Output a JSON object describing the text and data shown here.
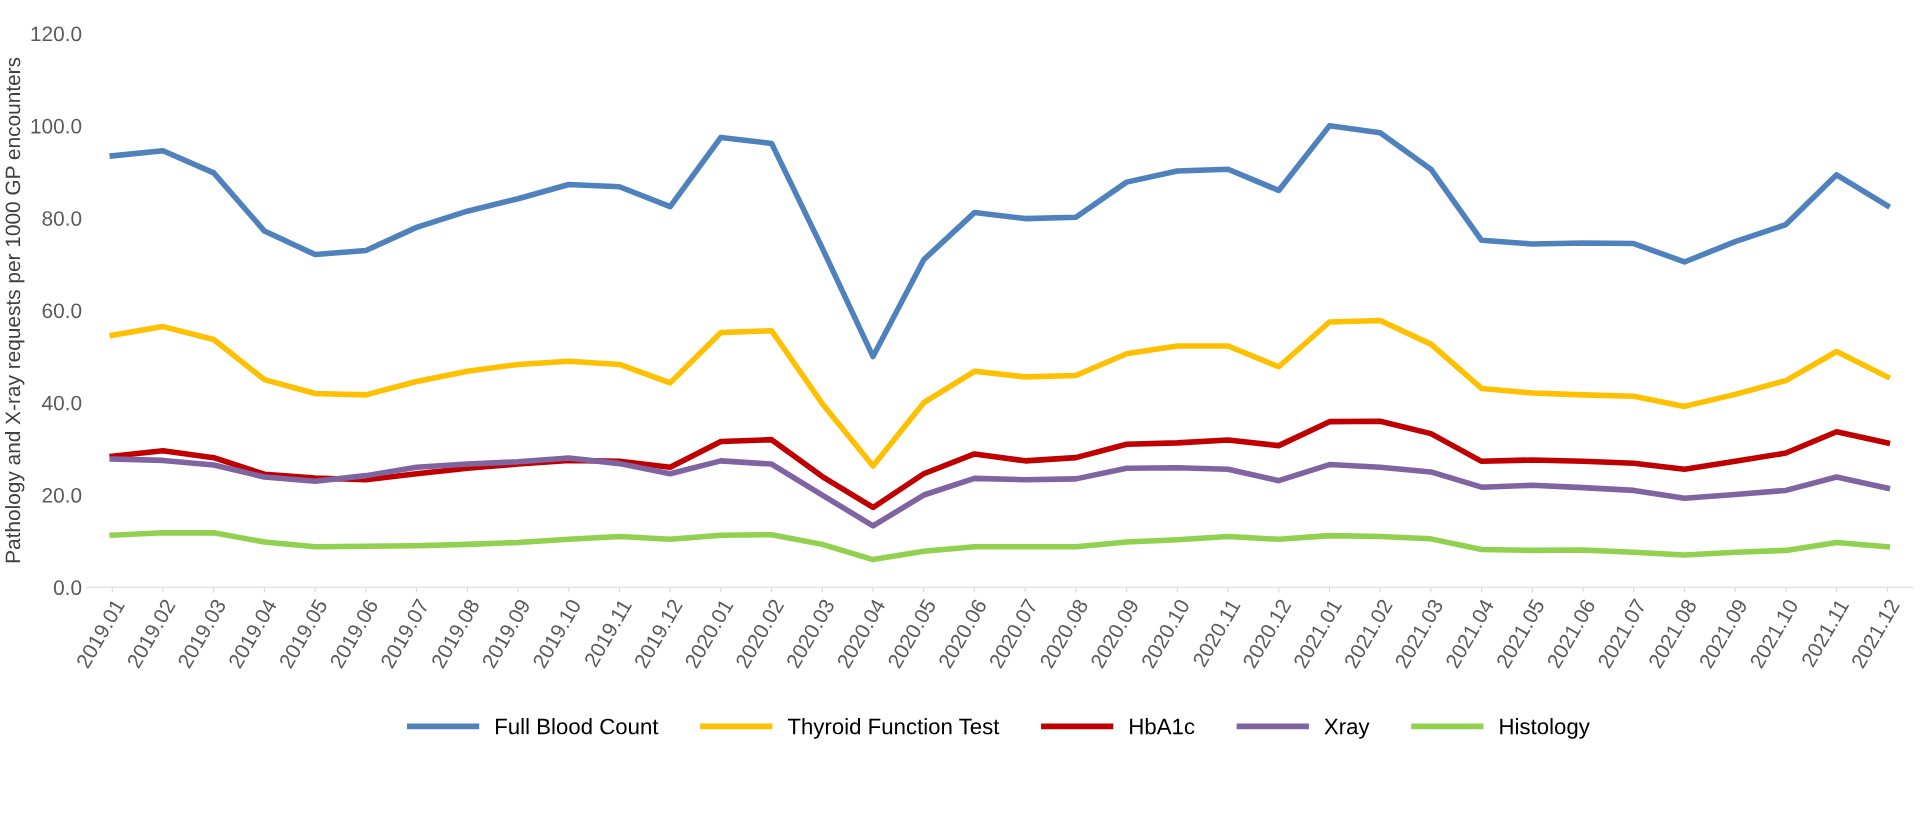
{
  "chart_data": {
    "type": "line",
    "ylabel": "Pathology and X-ray requests per 1000 GP encounters",
    "categories": [
      "2019.01",
      "2019.02",
      "2019.03",
      "2019.04",
      "2019.05",
      "2019.06",
      "2019.07",
      "2019.08",
      "2019.09",
      "2019.10",
      "2019.11",
      "2019.12",
      "2020.01",
      "2020.02",
      "2020.03",
      "2020.04",
      "2020.05",
      "2020.06",
      "2020.07",
      "2020.08",
      "2020.09",
      "2020.10",
      "2020.11",
      "2020.12",
      "2021.01",
      "2021.02",
      "2021.03",
      "2021.04",
      "2021.05",
      "2021.06",
      "2021.07",
      "2021.08",
      "2021.09",
      "2021.10",
      "2021.11",
      "2021.12"
    ],
    "ylim": [
      0,
      120
    ],
    "yticks": [
      {
        "value": 0,
        "label": "0.0"
      },
      {
        "value": 20,
        "label": "20.0"
      },
      {
        "value": 40,
        "label": "40.0"
      },
      {
        "value": 60,
        "label": "60.0"
      },
      {
        "value": 80,
        "label": "80.0"
      },
      {
        "value": 100,
        "label": "100.0"
      },
      {
        "value": 120,
        "label": "120.0"
      }
    ],
    "grid": false,
    "legend": "bottom",
    "marker": "none",
    "line_style": "solid",
    "series": [
      {
        "name": "Full Blood Count",
        "color": "#4f81bd",
        "values": [
          93.5,
          94.6,
          89.8,
          77.2,
          72.1,
          73.0,
          78.0,
          81.5,
          84.2,
          87.3,
          86.8,
          82.5,
          97.5,
          96.2,
          73.5,
          50.0,
          71.0,
          81.2,
          79.9,
          80.2,
          87.8,
          90.2,
          90.6,
          86.0,
          100.0,
          98.5,
          90.6,
          75.2,
          74.4,
          74.6,
          74.5,
          70.5,
          74.9,
          78.6,
          89.4,
          82.7
        ]
      },
      {
        "name": "Thyroid Function Test",
        "color": "#ffc000",
        "values": [
          54.6,
          56.5,
          53.7,
          45.0,
          42.0,
          41.7,
          44.6,
          46.8,
          48.3,
          49.0,
          48.3,
          44.3,
          55.2,
          55.6,
          39.8,
          26.3,
          40.0,
          46.8,
          45.6,
          45.9,
          50.6,
          52.3,
          52.3,
          47.8,
          57.5,
          57.8,
          52.7,
          43.1,
          42.1,
          41.7,
          41.4,
          39.2,
          41.8,
          44.8,
          51.1,
          45.6
        ]
      },
      {
        "name": "HbA1c",
        "color": "#c00000",
        "values": [
          28.4,
          29.6,
          28.1,
          24.5,
          23.7,
          23.3,
          24.6,
          25.8,
          26.7,
          27.5,
          27.3,
          26.0,
          31.6,
          32.0,
          24.0,
          17.3,
          24.6,
          28.9,
          27.4,
          28.1,
          31.0,
          31.3,
          31.9,
          30.7,
          35.9,
          36.0,
          33.3,
          27.3,
          27.6,
          27.3,
          26.9,
          25.6,
          27.3,
          29.1,
          33.7,
          31.3
        ]
      },
      {
        "name": "Xray",
        "color": "#8064a2",
        "values": [
          27.8,
          27.5,
          26.5,
          23.9,
          23.0,
          24.2,
          26.0,
          26.7,
          27.2,
          28.0,
          26.8,
          24.6,
          27.4,
          26.7,
          20.0,
          13.3,
          20.0,
          23.6,
          23.3,
          23.5,
          25.8,
          25.9,
          25.6,
          23.1,
          26.6,
          26.0,
          25.0,
          21.7,
          22.1,
          21.6,
          21.0,
          19.3,
          20.1,
          21.0,
          23.9,
          21.5
        ]
      },
      {
        "name": "Histology",
        "color": "#92d050",
        "values": [
          11.3,
          11.8,
          11.8,
          9.8,
          8.8,
          8.9,
          9.0,
          9.3,
          9.7,
          10.4,
          11.0,
          10.4,
          11.3,
          11.4,
          9.3,
          6.0,
          7.8,
          8.8,
          8.8,
          8.8,
          9.8,
          10.3,
          11.0,
          10.4,
          11.2,
          11.0,
          10.5,
          8.2,
          8.0,
          8.1,
          7.6,
          7.0,
          7.6,
          8.0,
          9.7,
          8.8
        ]
      }
    ]
  }
}
